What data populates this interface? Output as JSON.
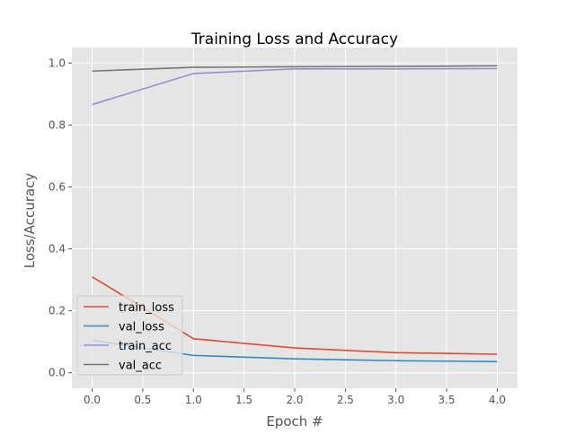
{
  "chart_data": {
    "type": "line",
    "title": "Training Loss and Accuracy",
    "xlabel": "Epoch #",
    "ylabel": "Loss/Accuracy",
    "x": [
      0,
      1,
      2,
      3,
      4
    ],
    "xlim": [
      -0.2,
      4.2
    ],
    "ylim": [
      -0.05,
      1.05
    ],
    "xticks": [
      "0.0",
      "0.5",
      "1.0",
      "1.5",
      "2.0",
      "2.5",
      "3.0",
      "3.5",
      "4.0"
    ],
    "yticks": [
      "0.0",
      "0.2",
      "0.4",
      "0.6",
      "0.8",
      "1.0"
    ],
    "grid": true,
    "legend_position": "lower-left",
    "series": [
      {
        "name": "train_loss",
        "color": "#E24A33",
        "values": [
          0.31,
          0.11,
          0.08,
          0.065,
          0.06
        ]
      },
      {
        "name": "val_loss",
        "color": "#348ABD",
        "values": [
          0.105,
          0.056,
          0.045,
          0.039,
          0.036
        ]
      },
      {
        "name": "train_acc",
        "color": "#988ED5",
        "values": [
          0.866,
          0.966,
          0.981,
          0.981,
          0.982
        ]
      },
      {
        "name": "val_acc",
        "color": "#777777",
        "values": [
          0.974,
          0.986,
          0.988,
          0.989,
          0.991
        ]
      }
    ]
  }
}
